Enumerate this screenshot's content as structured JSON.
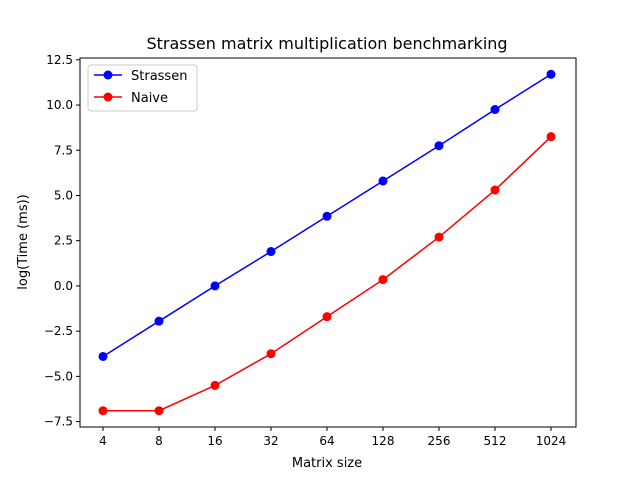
{
  "chart_data": {
    "type": "line",
    "title": "Strassen matrix multiplication benchmarking",
    "xlabel": "Matrix size",
    "ylabel": "log(Time (ms))",
    "categories": [
      "4",
      "8",
      "16",
      "32",
      "64",
      "128",
      "256",
      "512",
      "1024"
    ],
    "ylim": [
      -7.8,
      12.6
    ],
    "yticks": [
      -7.5,
      -5.0,
      -2.5,
      0.0,
      2.5,
      5.0,
      7.5,
      10.0,
      12.5
    ],
    "ytick_labels": [
      "−7.5",
      "−5.0",
      "−2.5",
      "0.0",
      "2.5",
      "5.0",
      "7.5",
      "10.0",
      "12.5"
    ],
    "grid": false,
    "legend_position": "top-left",
    "series": [
      {
        "name": "Strassen",
        "color": "#0000ff",
        "values": [
          -3.9,
          -1.95,
          0.0,
          1.9,
          3.85,
          5.8,
          7.75,
          9.75,
          11.7
        ]
      },
      {
        "name": "Naive",
        "color": "#ff0000",
        "values": [
          -6.9,
          -6.9,
          -5.5,
          -3.75,
          -1.7,
          0.35,
          2.7,
          5.3,
          8.25
        ]
      }
    ]
  }
}
